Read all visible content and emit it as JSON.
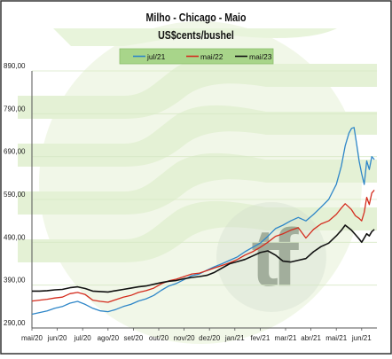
{
  "chart_data": {
    "type": "line",
    "title": "Milho - Chicago - Maio",
    "subtitle": "US$cents/bushel",
    "y_ticks": [
      "890,00",
      "790,00",
      "690,00",
      "590,00",
      "490,00",
      "390,00",
      "290,00"
    ],
    "y_tick_values": [
      890,
      790,
      690,
      590,
      490,
      390,
      290
    ],
    "ylim": [
      290,
      890
    ],
    "x_ticks": [
      "mai/20",
      "jun/20",
      "jul/20",
      "ago/20",
      "set/20",
      "out/20",
      "nov/20",
      "dez/20",
      "jan/21",
      "fev/21",
      "mar/21",
      "abr/21",
      "mai/21",
      "jun/21"
    ],
    "legend_position": "top",
    "watermark": "tf",
    "series": [
      {
        "name": "jul/21",
        "color": "#2e86c8",
        "values": [
          [
            0,
            322
          ],
          [
            0.3,
            326
          ],
          [
            0.6,
            330
          ],
          [
            0.9,
            336
          ],
          [
            1.2,
            340
          ],
          [
            1.5,
            348
          ],
          [
            1.8,
            352
          ],
          [
            2.1,
            345
          ],
          [
            2.4,
            336
          ],
          [
            2.7,
            330
          ],
          [
            3,
            328
          ],
          [
            3.3,
            333
          ],
          [
            3.6,
            340
          ],
          [
            3.9,
            345
          ],
          [
            4.2,
            353
          ],
          [
            4.5,
            358
          ],
          [
            4.8,
            366
          ],
          [
            5.1,
            378
          ],
          [
            5.4,
            388
          ],
          [
            5.7,
            394
          ],
          [
            6,
            403
          ],
          [
            6.3,
            412
          ],
          [
            6.6,
            416
          ],
          [
            6.9,
            425
          ],
          [
            7.2,
            433
          ],
          [
            7.5,
            440
          ],
          [
            7.8,
            448
          ],
          [
            8.1,
            456
          ],
          [
            8.4,
            468
          ],
          [
            8.7,
            478
          ],
          [
            9,
            488
          ],
          [
            9.3,
            504
          ],
          [
            9.6,
            522
          ],
          [
            9.9,
            530
          ],
          [
            10.2,
            540
          ],
          [
            10.5,
            548
          ],
          [
            10.8,
            540
          ],
          [
            11.1,
            555
          ],
          [
            11.4,
            572
          ],
          [
            11.7,
            590
          ],
          [
            12,
            625
          ],
          [
            12.2,
            668
          ],
          [
            12.35,
            715
          ],
          [
            12.5,
            745
          ],
          [
            12.6,
            756
          ],
          [
            12.7,
            758
          ],
          [
            12.8,
            720
          ],
          [
            12.9,
            680
          ],
          [
            13,
            650
          ],
          [
            13.1,
            625
          ],
          [
            13.2,
            680
          ],
          [
            13.3,
            660
          ],
          [
            13.4,
            690
          ],
          [
            13.5,
            683
          ]
        ]
      },
      {
        "name": "mai/22",
        "color": "#d42c1e",
        "values": [
          [
            0,
            353
          ],
          [
            0.3,
            355
          ],
          [
            0.6,
            357
          ],
          [
            0.9,
            360
          ],
          [
            1.2,
            362
          ],
          [
            1.5,
            370
          ],
          [
            1.8,
            373
          ],
          [
            2.1,
            368
          ],
          [
            2.4,
            355
          ],
          [
            2.7,
            352
          ],
          [
            3,
            350
          ],
          [
            3.3,
            356
          ],
          [
            3.6,
            362
          ],
          [
            3.9,
            366
          ],
          [
            4.2,
            373
          ],
          [
            4.5,
            377
          ],
          [
            4.8,
            383
          ],
          [
            5.1,
            393
          ],
          [
            5.4,
            400
          ],
          [
            5.7,
            404
          ],
          [
            6,
            410
          ],
          [
            6.3,
            416
          ],
          [
            6.6,
            418
          ],
          [
            6.9,
            424
          ],
          [
            7.2,
            430
          ],
          [
            7.5,
            436
          ],
          [
            7.8,
            442
          ],
          [
            8.1,
            450
          ],
          [
            8.4,
            460
          ],
          [
            8.7,
            468
          ],
          [
            9,
            478
          ],
          [
            9.3,
            490
          ],
          [
            9.6,
            504
          ],
          [
            9.9,
            510
          ],
          [
            10.2,
            518
          ],
          [
            10.5,
            524
          ],
          [
            10.8,
            500
          ],
          [
            11.1,
            520
          ],
          [
            11.4,
            533
          ],
          [
            11.7,
            540
          ],
          [
            12,
            555
          ],
          [
            12.2,
            570
          ],
          [
            12.35,
            580
          ],
          [
            12.5,
            572
          ],
          [
            12.6,
            566
          ],
          [
            12.75,
            552
          ],
          [
            12.9,
            546
          ],
          [
            13,
            540
          ],
          [
            13.1,
            560
          ],
          [
            13.2,
            595
          ],
          [
            13.3,
            578
          ],
          [
            13.4,
            605
          ],
          [
            13.5,
            612
          ]
        ]
      },
      {
        "name": "mai/23",
        "color": "#111111",
        "values": [
          [
            0,
            376
          ],
          [
            0.3,
            376
          ],
          [
            0.6,
            377
          ],
          [
            0.9,
            379
          ],
          [
            1.2,
            380
          ],
          [
            1.5,
            384
          ],
          [
            1.8,
            386
          ],
          [
            2.1,
            382
          ],
          [
            2.4,
            376
          ],
          [
            2.7,
            375
          ],
          [
            3,
            374
          ],
          [
            3.3,
            377
          ],
          [
            3.6,
            380
          ],
          [
            3.9,
            383
          ],
          [
            4.2,
            386
          ],
          [
            4.5,
            388
          ],
          [
            4.8,
            392
          ],
          [
            5.1,
            396
          ],
          [
            5.4,
            399
          ],
          [
            5.7,
            401
          ],
          [
            6,
            405
          ],
          [
            6.3,
            408
          ],
          [
            6.6,
            410
          ],
          [
            6.9,
            413
          ],
          [
            7.2,
            420
          ],
          [
            7.5,
            430
          ],
          [
            7.8,
            440
          ],
          [
            8.1,
            445
          ],
          [
            8.4,
            450
          ],
          [
            8.7,
            458
          ],
          [
            9,
            466
          ],
          [
            9.3,
            470
          ],
          [
            9.6,
            460
          ],
          [
            9.9,
            446
          ],
          [
            10.2,
            444
          ],
          [
            10.5,
            448
          ],
          [
            10.8,
            452
          ],
          [
            11.1,
            468
          ],
          [
            11.4,
            480
          ],
          [
            11.7,
            488
          ],
          [
            12,
            505
          ],
          [
            12.2,
            518
          ],
          [
            12.35,
            530
          ],
          [
            12.5,
            523
          ],
          [
            12.6,
            518
          ],
          [
            12.75,
            508
          ],
          [
            12.9,
            498
          ],
          [
            13,
            490
          ],
          [
            13.1,
            500
          ],
          [
            13.2,
            510
          ],
          [
            13.3,
            505
          ],
          [
            13.4,
            515
          ],
          [
            13.5,
            520
          ]
        ]
      }
    ]
  }
}
